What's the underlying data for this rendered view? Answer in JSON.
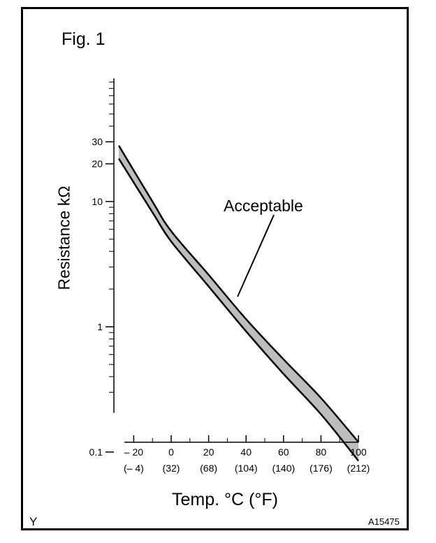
{
  "figure": {
    "label": "Fig. 1",
    "corner_left": "Y",
    "corner_right": "A15475"
  },
  "chart_data": {
    "type": "line",
    "ylabel": "Resistance kΩ",
    "xlabel": "Temp. °C (°F)",
    "annotation": "Acceptable",
    "y_scale": "log",
    "x_range": [
      -25,
      100
    ],
    "y_ticks": [
      {
        "value": 0.1,
        "label": "0.1"
      },
      {
        "value": 1,
        "label": "1"
      },
      {
        "value": 10,
        "label": "10"
      },
      {
        "value": 20,
        "label": "20"
      },
      {
        "value": 30,
        "label": "30"
      }
    ],
    "x_ticks": [
      {
        "value": -20,
        "label": "– 20",
        "sublabel": "(– 4)"
      },
      {
        "value": 0,
        "label": "0",
        "sublabel": "(32)"
      },
      {
        "value": 20,
        "label": "20",
        "sublabel": "(68)"
      },
      {
        "value": 40,
        "label": "40",
        "sublabel": "(104)"
      },
      {
        "value": 60,
        "label": "60",
        "sublabel": "(140)"
      },
      {
        "value": 80,
        "label": "80",
        "sublabel": "(176)"
      },
      {
        "value": 100,
        "label": "100",
        "sublabel": "(212)"
      }
    ],
    "band": {
      "upper": {
        "x": [
          -28,
          -10,
          0,
          20,
          40,
          60,
          80,
          100
        ],
        "y": [
          28,
          10,
          5.8,
          2.6,
          1.15,
          0.55,
          0.27,
          0.12
        ]
      },
      "lower": {
        "x": [
          -28,
          -10,
          0,
          20,
          40,
          60,
          80,
          100
        ],
        "y": [
          22,
          8.2,
          4.8,
          2.1,
          0.92,
          0.42,
          0.2,
          0.085
        ]
      }
    },
    "band_fill": "#bdbdbd",
    "line_color": "#000000"
  }
}
